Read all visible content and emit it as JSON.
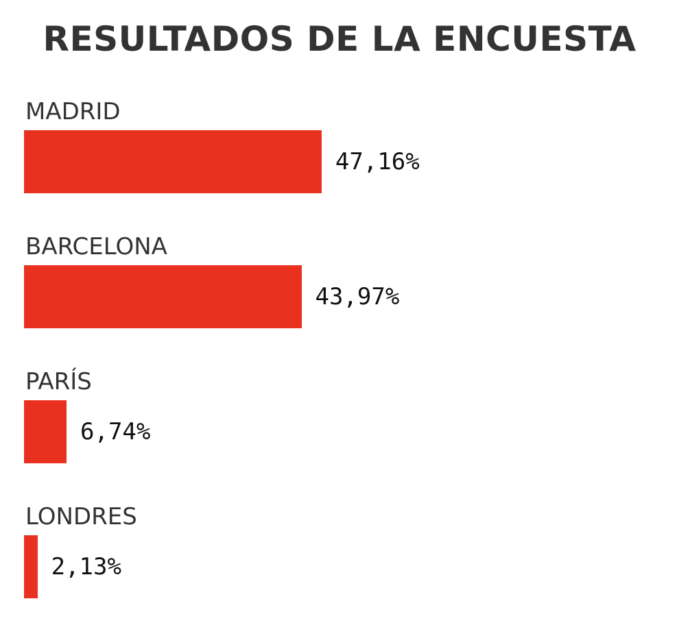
{
  "chart_data": {
    "type": "bar",
    "orientation": "horizontal",
    "title": "RESULTADOS DE LA ENCUESTA",
    "categories": [
      "MADRID",
      "BARCELONA",
      "PARÍS",
      "LONDRES"
    ],
    "values": [
      47.16,
      43.97,
      6.74,
      2.13
    ],
    "value_labels": [
      "47,16%",
      "43,97%",
      "6,74%",
      "2,13%"
    ],
    "unit": "%",
    "xlim": [
      0,
      100
    ],
    "grid": false,
    "legend": "none",
    "bar_color": "#e8321f"
  }
}
